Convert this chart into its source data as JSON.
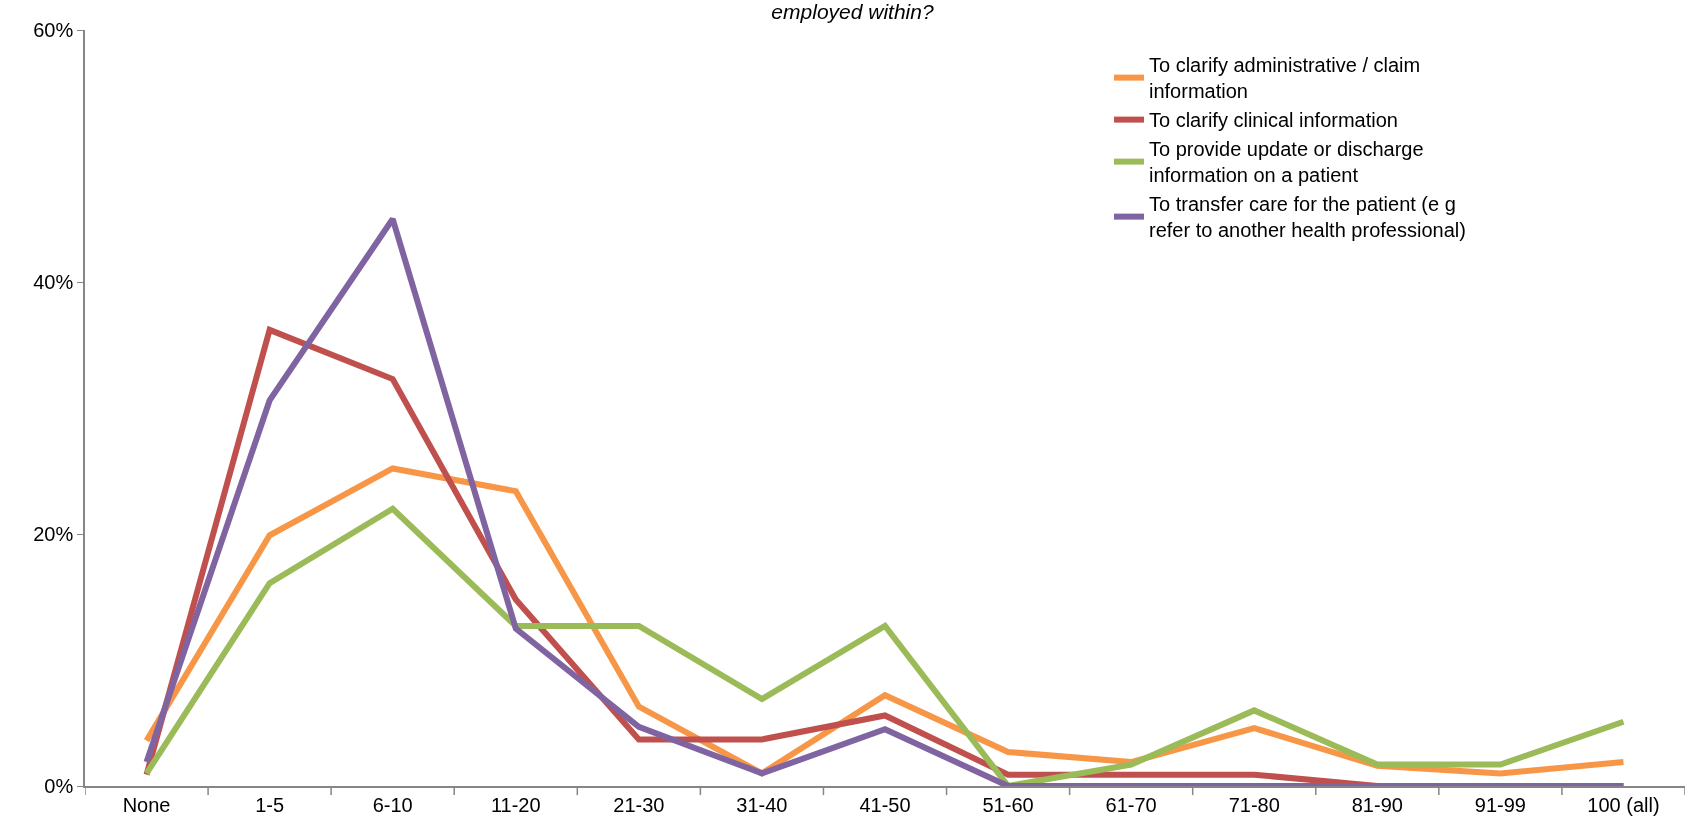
{
  "chart_data": {
    "type": "line",
    "title": "employed within?",
    "categories": [
      "None",
      "1-5",
      "6-10",
      "11-20",
      "21-30",
      "31-40",
      "41-50",
      "51-60",
      "61-70",
      "71-80",
      "81-90",
      "91-99",
      "100 (all)"
    ],
    "series": [
      {
        "name": "To clarify administrative / claim information",
        "color": "#f79646",
        "values": [
          3.6,
          19.9,
          25.2,
          23.4,
          6.3,
          1.0,
          7.2,
          2.7,
          1.9,
          4.6,
          1.6,
          1.0,
          1.9
        ]
      },
      {
        "name": "To clarify clinical information",
        "color": "#c0504d",
        "values": [
          0.9,
          36.2,
          32.3,
          14.8,
          3.7,
          3.7,
          5.6,
          0.9,
          0.9,
          0.9,
          0,
          0,
          0
        ]
      },
      {
        "name": "To provide update or discharge information on a patient",
        "color": "#9bbb59",
        "values": [
          1.0,
          16.1,
          22.0,
          12.7,
          12.7,
          6.9,
          12.7,
          0,
          1.7,
          6.0,
          1.7,
          1.7,
          5.1
        ]
      },
      {
        "name": "To transfer care for the patient (e g  refer to another health professional)",
        "color": "#8064a2",
        "values": [
          1.9,
          30.6,
          45.0,
          12.5,
          4.7,
          1.0,
          4.5,
          0,
          0,
          0,
          0,
          0,
          0
        ]
      }
    ],
    "ylim": [
      0,
      60
    ],
    "yticks": [
      {
        "value": 0,
        "label": "0%"
      },
      {
        "value": 20,
        "label": "20%"
      },
      {
        "value": 40,
        "label": "40%"
      },
      {
        "value": 60,
        "label": "60%"
      }
    ],
    "legend": "top right",
    "marker": "none",
    "line_style": "solid"
  }
}
